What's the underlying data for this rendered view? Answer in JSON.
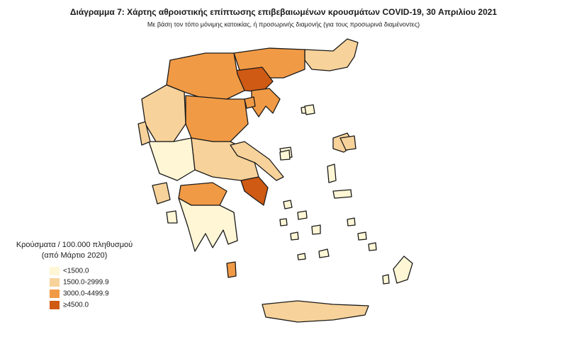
{
  "header": {
    "title": "Διάγραμμα 7: Χάρτης αθροιστικής επίπτωσης επιβεβαιωμένων κρουσμάτων COVID-19, 30 Απριλίου 2021",
    "subtitle": "Με βάση τον τόπο μόνιμης κατοικίας, ή προσωρινής διαμονής (για τους προσωρινά διαμένοντες)"
  },
  "legend": {
    "title": [
      "Κρούσματα / 100.000 πληθυσμού",
      "(από Μάρτιο 2020)"
    ],
    "items": [
      {
        "label": "<1500.0",
        "color": "#fff6d5"
      },
      {
        "label": "1500.0-2999.9",
        "color": "#f7d29a"
      },
      {
        "label": "3000.0-4499.9",
        "color": "#f19a45"
      },
      {
        "label": "≥4500.0",
        "color": "#cf5a14"
      }
    ]
  }
}
